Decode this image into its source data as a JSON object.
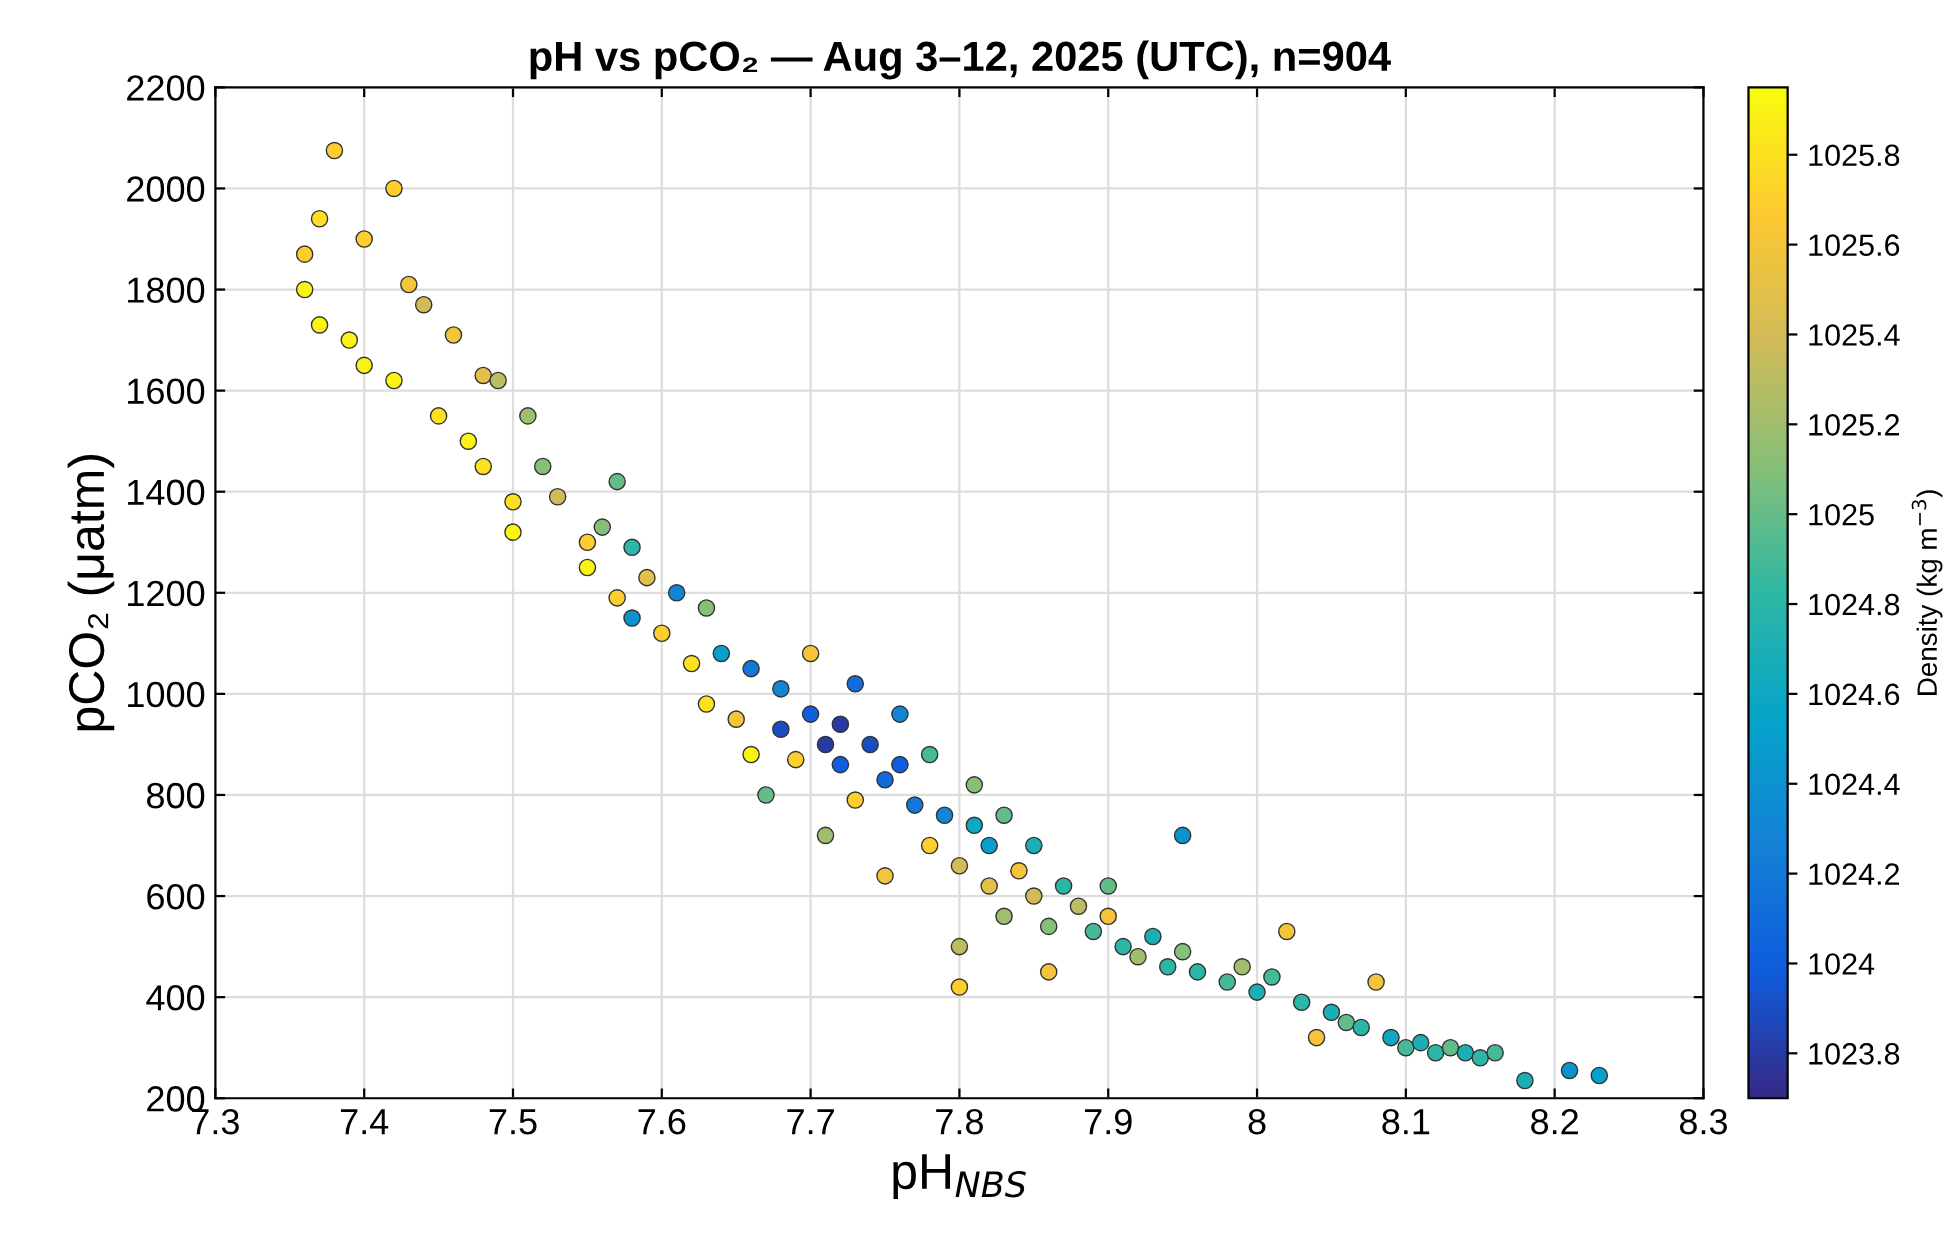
{
  "chart_data": {
    "type": "scatter",
    "title": "pH vs pCO₂ — Aug 3–12, 2025 (UTC), n=904",
    "xlabel": "pH$_{NBS}$",
    "ylabel": "pCO₂ (μatm)",
    "clabel": "Density (kg m$^{−3}$)",
    "xlim": [
      7.3,
      8.3
    ],
    "xticks": [
      7.3,
      7.4,
      7.5,
      7.6,
      7.7,
      7.8,
      7.9,
      8,
      8.1,
      8.2,
      8.3
    ],
    "ylim": [
      200,
      2200
    ],
    "yticks": [
      200,
      400,
      600,
      800,
      1000,
      1200,
      1400,
      1600,
      1800,
      2000,
      2200
    ],
    "clim": [
      1023.7,
      1025.95
    ],
    "cticks": [
      1023.8,
      1024,
      1024.2,
      1024.4,
      1024.6,
      1024.8,
      1025,
      1025.2,
      1025.4,
      1025.6,
      1025.8
    ],
    "grid": true,
    "marker": "circle",
    "x": [
      7.36,
      7.36,
      7.37,
      7.38,
      7.37,
      7.39,
      7.4,
      7.4,
      7.42,
      7.42,
      7.43,
      7.44,
      7.45,
      7.46,
      7.47,
      7.48,
      7.49,
      7.48,
      7.5,
      7.5,
      7.51,
      7.52,
      7.53,
      7.55,
      7.55,
      7.56,
      7.57,
      7.57,
      7.58,
      7.58,
      7.59,
      7.6,
      7.61,
      7.62,
      7.63,
      7.63,
      7.64,
      7.65,
      7.66,
      7.66,
      7.67,
      7.68,
      7.68,
      7.69,
      7.7,
      7.7,
      7.71,
      7.71,
      7.72,
      7.72,
      7.73,
      7.73,
      7.74,
      7.75,
      7.75,
      7.76,
      7.76,
      7.77,
      7.78,
      7.78,
      7.79,
      7.8,
      7.8,
      7.8,
      7.81,
      7.81,
      7.82,
      7.82,
      7.83,
      7.83,
      7.84,
      7.85,
      7.85,
      7.86,
      7.86,
      7.87,
      7.88,
      7.89,
      7.9,
      7.9,
      7.91,
      7.92,
      7.93,
      7.94,
      7.95,
      7.95,
      7.96,
      7.98,
      7.99,
      8.0,
      8.01,
      8.02,
      8.03,
      8.04,
      8.05,
      8.06,
      8.07,
      8.08,
      8.09,
      8.1,
      8.11,
      8.12,
      8.13,
      8.14,
      8.15,
      8.16,
      8.18,
      8.21,
      8.23
    ],
    "values": [
      1800,
      1870,
      1940,
      2075,
      1730,
      1700,
      1900,
      1650,
      2000,
      1620,
      1810,
      1770,
      1550,
      1710,
      1500,
      1630,
      1620,
      1450,
      1380,
      1320,
      1550,
      1450,
      1390,
      1300,
      1250,
      1330,
      1420,
      1190,
      1290,
      1150,
      1230,
      1120,
      1200,
      1060,
      1170,
      980,
      1080,
      950,
      1050,
      880,
      800,
      930,
      1010,
      870,
      960,
      1080,
      900,
      720,
      860,
      940,
      790,
      1020,
      900,
      830,
      640,
      960,
      860,
      780,
      880,
      700,
      760,
      660,
      420,
      500,
      740,
      820,
      620,
      700,
      560,
      760,
      650,
      600,
      700,
      450,
      540,
      620,
      580,
      530,
      560,
      620,
      500,
      480,
      520,
      460,
      720,
      490,
      450,
      430,
      460,
      410,
      440,
      530,
      390,
      320,
      370,
      350,
      340,
      430,
      320,
      300,
      310,
      290,
      300,
      290,
      280,
      290,
      235,
      255,
      245
    ],
    "cvalues": [
      1025.9,
      1025.7,
      1025.8,
      1025.7,
      1025.9,
      1025.9,
      1025.7,
      1025.9,
      1025.7,
      1025.9,
      1025.6,
      1025.4,
      1025.8,
      1025.6,
      1025.9,
      1025.5,
      1025.3,
      1025.8,
      1025.8,
      1025.9,
      1025.2,
      1025.1,
      1025.4,
      1025.7,
      1025.9,
      1025.1,
      1025.0,
      1025.7,
      1024.8,
      1024.4,
      1025.5,
      1025.7,
      1024.3,
      1025.8,
      1025.1,
      1025.8,
      1024.5,
      1025.6,
      1024.2,
      1025.9,
      1025.0,
      1023.9,
      1024.3,
      1025.7,
      1024.0,
      1025.6,
      1023.8,
      1025.2,
      1024.0,
      1023.8,
      1025.7,
      1024.1,
      1023.9,
      1024.1,
      1025.6,
      1024.3,
      1024.0,
      1024.2,
      1024.9,
      1025.7,
      1024.3,
      1025.4,
      1025.7,
      1025.3,
      1024.6,
      1025.1,
      1025.5,
      1024.5,
      1025.2,
      1025.0,
      1025.6,
      1025.4,
      1024.7,
      1025.6,
      1025.1,
      1024.8,
      1025.3,
      1024.9,
      1025.6,
      1025.0,
      1024.8,
      1025.2,
      1024.7,
      1024.8,
      1024.4,
      1025.1,
      1024.8,
      1024.9,
      1025.2,
      1024.7,
      1024.9,
      1025.6,
      1024.8,
      1025.6,
      1024.7,
      1025.0,
      1024.8,
      1025.6,
      1024.6,
      1024.9,
      1024.7,
      1024.8,
      1025.0,
      1024.7,
      1024.8,
      1024.9,
      1024.7,
      1024.4,
      1024.5
    ]
  }
}
